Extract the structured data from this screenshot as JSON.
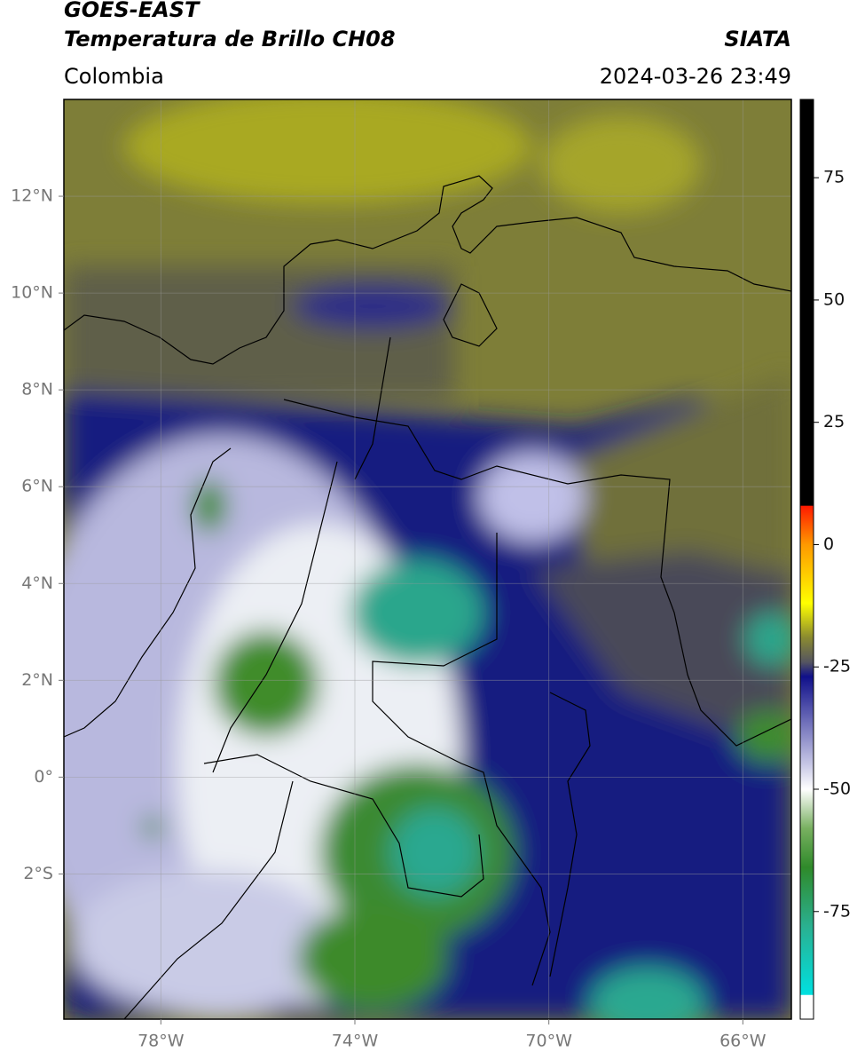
{
  "header": {
    "title_line1": "GOES-EAST",
    "title_line2": "Temperatura de Brillo CH08",
    "region": "Colombia",
    "source": "SIATA",
    "datetime": "2024-03-26 23:49"
  },
  "map": {
    "xlim": [
      -80,
      -65
    ],
    "ylim": [
      -5,
      14
    ],
    "grid": true,
    "lat_ticks": [
      {
        "value": 12,
        "label": "12°N"
      },
      {
        "value": 10,
        "label": "10°N"
      },
      {
        "value": 8,
        "label": "8°N"
      },
      {
        "value": 6,
        "label": "6°N"
      },
      {
        "value": 4,
        "label": "4°N"
      },
      {
        "value": 2,
        "label": "2°N"
      },
      {
        "value": 0,
        "label": "0°"
      },
      {
        "value": -2,
        "label": "2°S"
      }
    ],
    "lon_ticks": [
      {
        "value": -78,
        "label": "78°W"
      },
      {
        "value": -74,
        "label": "74°W"
      },
      {
        "value": -70,
        "label": "70°W"
      },
      {
        "value": -66,
        "label": "66°W"
      }
    ]
  },
  "colorbar": {
    "lim": [
      -97,
      91
    ],
    "ticks": [
      75,
      50,
      25,
      0,
      -25,
      -50,
      -75
    ],
    "colormap": [
      {
        "value": 91,
        "color": "#000000"
      },
      {
        "value": 8,
        "color": "#000000"
      },
      {
        "value": 7.9,
        "color": "#ff1a00"
      },
      {
        "value": 0,
        "color": "#ff9900"
      },
      {
        "value": -12,
        "color": "#ffff00"
      },
      {
        "value": -19,
        "color": "#8a8a30"
      },
      {
        "value": -24,
        "color": "#555560"
      },
      {
        "value": -27,
        "color": "#10108a"
      },
      {
        "value": -45,
        "color": "#c8c8e6"
      },
      {
        "value": -50,
        "color": "#ffffff"
      },
      {
        "value": -58,
        "color": "#78b060"
      },
      {
        "value": -66,
        "color": "#2f8a2a"
      },
      {
        "value": -78,
        "color": "#2ab090"
      },
      {
        "value": -92,
        "color": "#00e0e0"
      },
      {
        "value": -92.1,
        "color": "#ffffff"
      },
      {
        "value": -97,
        "color": "#ffffff"
      }
    ]
  }
}
